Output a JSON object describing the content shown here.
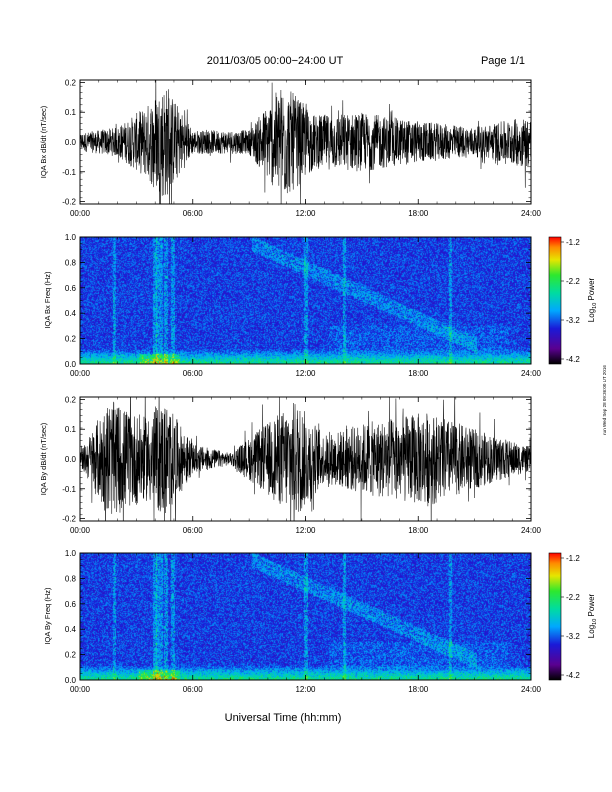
{
  "header": {
    "title": "2011/03/05  00:00−24:00 UT",
    "page": "Page 1/1"
  },
  "side_note": "run Wed Sep 28 09:36:00 UT 2016",
  "xlabel": "Universal Time (hh:mm)",
  "x_ticks": [
    "00:00",
    "06:00",
    "12:00",
    "18:00",
    "24:00"
  ],
  "colorbar": {
    "ticks": [
      "-1.2",
      "-2.2",
      "-3.2",
      "-4.2"
    ],
    "label_main": "Log",
    "label_sub": "10",
    "label_tail": " Power"
  },
  "chart_data": [
    {
      "type": "line",
      "ylabel": "IQA Bx dB/dt (nT/sec)",
      "ylim": [
        -0.2,
        0.2
      ],
      "y_ticks": [
        "0.2",
        "0.1",
        "0.0",
        "-0.1",
        "-0.2"
      ],
      "xlim": [
        "00:00",
        "24:00"
      ],
      "activity_envelope": [
        {
          "hour": 0,
          "amp": 0.03
        },
        {
          "hour": 2,
          "amp": 0.05
        },
        {
          "hour": 3.5,
          "amp": 0.12
        },
        {
          "hour": 4.5,
          "amp": 0.2
        },
        {
          "hour": 6,
          "amp": 0.04
        },
        {
          "hour": 9,
          "amp": 0.04
        },
        {
          "hour": 10.8,
          "amp": 0.2
        },
        {
          "hour": 12.5,
          "amp": 0.09
        },
        {
          "hour": 15,
          "amp": 0.1
        },
        {
          "hour": 18,
          "amp": 0.07
        },
        {
          "hour": 21,
          "amp": 0.05
        },
        {
          "hour": 24,
          "amp": 0.09
        }
      ]
    },
    {
      "type": "heatmap",
      "ylabel": "IQA Bx Freq (Hz)",
      "ylim": [
        0.0,
        1.0
      ],
      "y_ticks": [
        "1.0",
        "0.8",
        "0.6",
        "0.4",
        "0.2",
        "0.0"
      ],
      "xlim": [
        "00:00",
        "24:00"
      ],
      "zlim": [
        -4.2,
        -1.2
      ]
    },
    {
      "type": "line",
      "ylabel": "IQA By dB/dt (nT/sec)",
      "ylim": [
        -0.2,
        0.2
      ],
      "y_ticks": [
        "0.2",
        "0.1",
        "0.0",
        "-0.1",
        "-0.2"
      ],
      "xlim": [
        "00:00",
        "24:00"
      ],
      "activity_envelope": [
        {
          "hour": 0,
          "amp": 0.02
        },
        {
          "hour": 1.5,
          "amp": 0.2
        },
        {
          "hour": 3.5,
          "amp": 0.14
        },
        {
          "hour": 4.5,
          "amp": 0.2
        },
        {
          "hour": 6,
          "amp": 0.05
        },
        {
          "hour": 8,
          "amp": 0.02
        },
        {
          "hour": 11.5,
          "amp": 0.2
        },
        {
          "hour": 13,
          "amp": 0.08
        },
        {
          "hour": 15,
          "amp": 0.12
        },
        {
          "hour": 18.5,
          "amp": 0.16
        },
        {
          "hour": 21,
          "amp": 0.1
        },
        {
          "hour": 24,
          "amp": 0.04
        }
      ]
    },
    {
      "type": "heatmap",
      "ylabel": "IQA By Freq (Hz)",
      "ylim": [
        0.0,
        1.0
      ],
      "y_ticks": [
        "1.0",
        "0.8",
        "0.6",
        "0.4",
        "0.2",
        "0.0"
      ],
      "xlim": [
        "00:00",
        "24:00"
      ],
      "zlim": [
        -4.2,
        -1.2
      ]
    }
  ]
}
